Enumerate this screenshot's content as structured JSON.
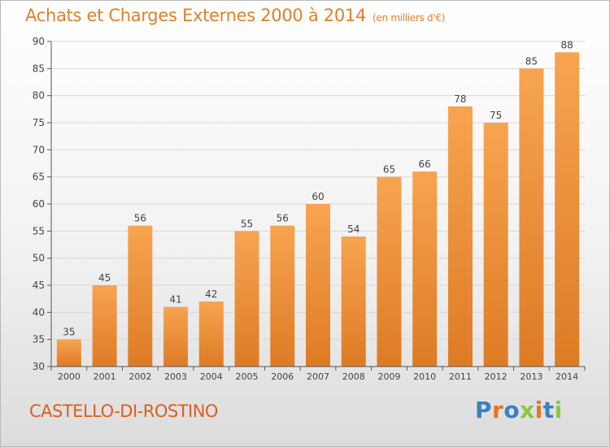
{
  "title": "Achats et Charges Externes 2000 à 2014",
  "subtitle": "(en milliers d'€)",
  "commune": "CASTELLO-DI-ROSTINO",
  "brand": "Proxiti",
  "colors": {
    "title": "#e07f2a",
    "commune": "#d9601f",
    "bar_light": "#f7a450",
    "bar_dark": "#de7b25",
    "axis": "#555555",
    "grid": "#d8d8d8",
    "brand_letters": [
      "#3a7fc4",
      "#e8731c",
      "#3a7fc4",
      "#8cc63e",
      "#e8731c",
      "#3a7fc4",
      "#8cc63e"
    ]
  },
  "chart_data": {
    "type": "bar",
    "categories": [
      "2000",
      "2001",
      "2002",
      "2003",
      "2004",
      "2005",
      "2006",
      "2007",
      "2008",
      "2009",
      "2010",
      "2011",
      "2012",
      "2013",
      "2014"
    ],
    "values": [
      35,
      45,
      56,
      41,
      42,
      55,
      56,
      60,
      54,
      65,
      66,
      78,
      75,
      85,
      88
    ],
    "ylim": [
      30,
      90
    ],
    "yticks": [
      30,
      35,
      40,
      45,
      50,
      55,
      60,
      65,
      70,
      75,
      80,
      85,
      90
    ],
    "grid": true,
    "data_labels": true
  }
}
